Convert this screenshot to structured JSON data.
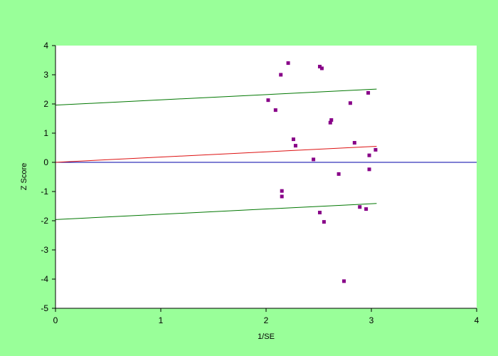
{
  "colors": {
    "page_background": "#99ff99",
    "plot_background": "#ffffff",
    "zero_line": "#0000aa",
    "regression_line": "#dd1111",
    "confidence_lines": "#007700",
    "points": "#880088"
  },
  "chart_data": {
    "type": "scatter",
    "xlabel": "1/SE",
    "ylabel": "Z Score",
    "xlim": [
      0,
      4
    ],
    "ylim": [
      -5,
      4
    ],
    "xticks": [
      "0",
      "1",
      "2",
      "3",
      "4"
    ],
    "yticks": [
      "4",
      "3",
      "2",
      "1",
      "0",
      "-1",
      "-2",
      "-3",
      "-4",
      "-5"
    ],
    "grid": false,
    "points": [
      {
        "x": 2.21,
        "y": 3.4
      },
      {
        "x": 2.51,
        "y": 3.28
      },
      {
        "x": 2.53,
        "y": 3.22
      },
      {
        "x": 2.14,
        "y": 3.0
      },
      {
        "x": 2.97,
        "y": 2.38
      },
      {
        "x": 2.02,
        "y": 2.13
      },
      {
        "x": 2.8,
        "y": 2.03
      },
      {
        "x": 2.09,
        "y": 1.79
      },
      {
        "x": 2.62,
        "y": 1.45
      },
      {
        "x": 2.61,
        "y": 1.36
      },
      {
        "x": 2.26,
        "y": 0.79
      },
      {
        "x": 2.84,
        "y": 0.67
      },
      {
        "x": 2.28,
        "y": 0.57
      },
      {
        "x": 3.04,
        "y": 0.43
      },
      {
        "x": 2.98,
        "y": 0.24
      },
      {
        "x": 2.45,
        "y": 0.1
      },
      {
        "x": 2.98,
        "y": -0.24
      },
      {
        "x": 2.69,
        "y": -0.4
      },
      {
        "x": 2.15,
        "y": -0.98
      },
      {
        "x": 2.15,
        "y": -1.17
      },
      {
        "x": 2.89,
        "y": -1.53
      },
      {
        "x": 2.95,
        "y": -1.6
      },
      {
        "x": 2.51,
        "y": -1.72
      },
      {
        "x": 2.55,
        "y": -2.04
      },
      {
        "x": 2.74,
        "y": -4.07
      }
    ],
    "lines": [
      {
        "role": "zero",
        "x": [
          0,
          4
        ],
        "y": [
          0,
          0
        ]
      },
      {
        "role": "regression",
        "x": [
          0,
          3.05
        ],
        "y": [
          0,
          0.55
        ]
      },
      {
        "role": "upper-limit",
        "x": [
          0,
          3.05
        ],
        "y": [
          1.96,
          2.51
        ]
      },
      {
        "role": "lower-limit",
        "x": [
          0,
          3.05
        ],
        "y": [
          -1.96,
          -1.41
        ]
      }
    ]
  }
}
